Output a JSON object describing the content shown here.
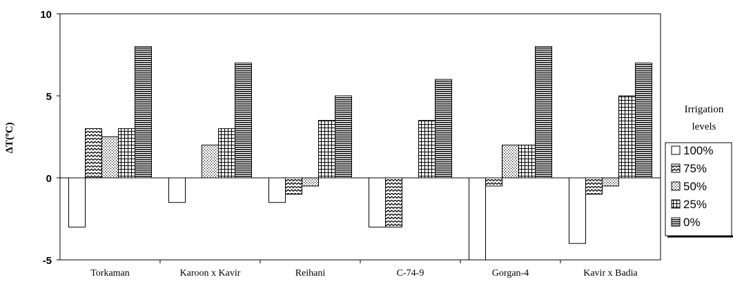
{
  "chart_data": {
    "type": "bar",
    "title": "",
    "xlabel": "",
    "ylabel": "ΔT(ºC)",
    "ylim": [
      -5,
      10
    ],
    "yticks": [
      "10",
      "5",
      "0",
      "-5"
    ],
    "grid": false,
    "legend_position": "right",
    "legend_title_line1": "Irrigation",
    "legend_title_line2": "levels",
    "categories": [
      "Torkaman",
      "Karoon x Kavir",
      "Reihani",
      "C-74-9",
      "Gorgan-4",
      "Kavir x Badia"
    ],
    "series": [
      {
        "name": "100%",
        "pattern": "blank",
        "values": [
          -3,
          -1.5,
          -1.5,
          -3,
          -5,
          -4
        ]
      },
      {
        "name": "75%",
        "pattern": "zigzag",
        "values": [
          3,
          0,
          -1,
          -3,
          -0.5,
          -1
        ]
      },
      {
        "name": "50%",
        "pattern": "dots",
        "values": [
          2.5,
          2,
          -0.5,
          0,
          2,
          -0.5
        ]
      },
      {
        "name": "25%",
        "pattern": "grid",
        "values": [
          3,
          3,
          3.5,
          3.5,
          2,
          5
        ]
      },
      {
        "name": "0%",
        "pattern": "hlines",
        "values": [
          8,
          7,
          5,
          6,
          8,
          7
        ]
      }
    ]
  }
}
